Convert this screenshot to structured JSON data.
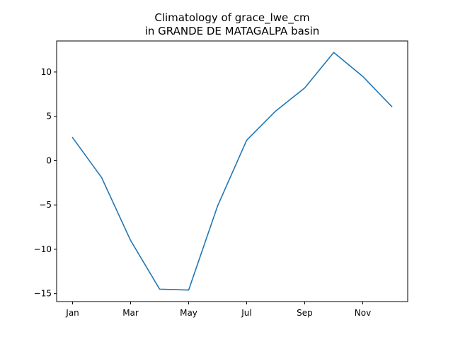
{
  "chart_data": {
    "type": "line",
    "title_line1": "Climatology of grace_lwe_cm",
    "title_line2": "in GRANDE DE MATAGALPA basin",
    "xlabel": "",
    "ylabel": "",
    "x": [
      1,
      2,
      3,
      4,
      5,
      6,
      7,
      8,
      9,
      10,
      11,
      12
    ],
    "x_ticks": [
      {
        "value": 1,
        "label": "Jan"
      },
      {
        "value": 3,
        "label": "Mar"
      },
      {
        "value": 5,
        "label": "May"
      },
      {
        "value": 7,
        "label": "Jul"
      },
      {
        "value": 9,
        "label": "Sep"
      },
      {
        "value": 11,
        "label": "Nov"
      }
    ],
    "y_ticks": [
      {
        "value": 10,
        "label": "10"
      },
      {
        "value": 5,
        "label": "5"
      },
      {
        "value": 0,
        "label": "0"
      },
      {
        "value": -5,
        "label": "−5"
      },
      {
        "value": -10,
        "label": "−10"
      },
      {
        "value": -15,
        "label": "−15"
      }
    ],
    "xlim": [
      0.45,
      12.55
    ],
    "ylim": [
      -15.9,
      13.5
    ],
    "grid": false,
    "series": [
      {
        "color": "#1f77b4",
        "values": [
          2.6,
          -1.9,
          -9.0,
          -14.5,
          -14.6,
          -5.1,
          2.3,
          5.6,
          8.2,
          12.2,
          9.5,
          6.1
        ]
      }
    ]
  }
}
